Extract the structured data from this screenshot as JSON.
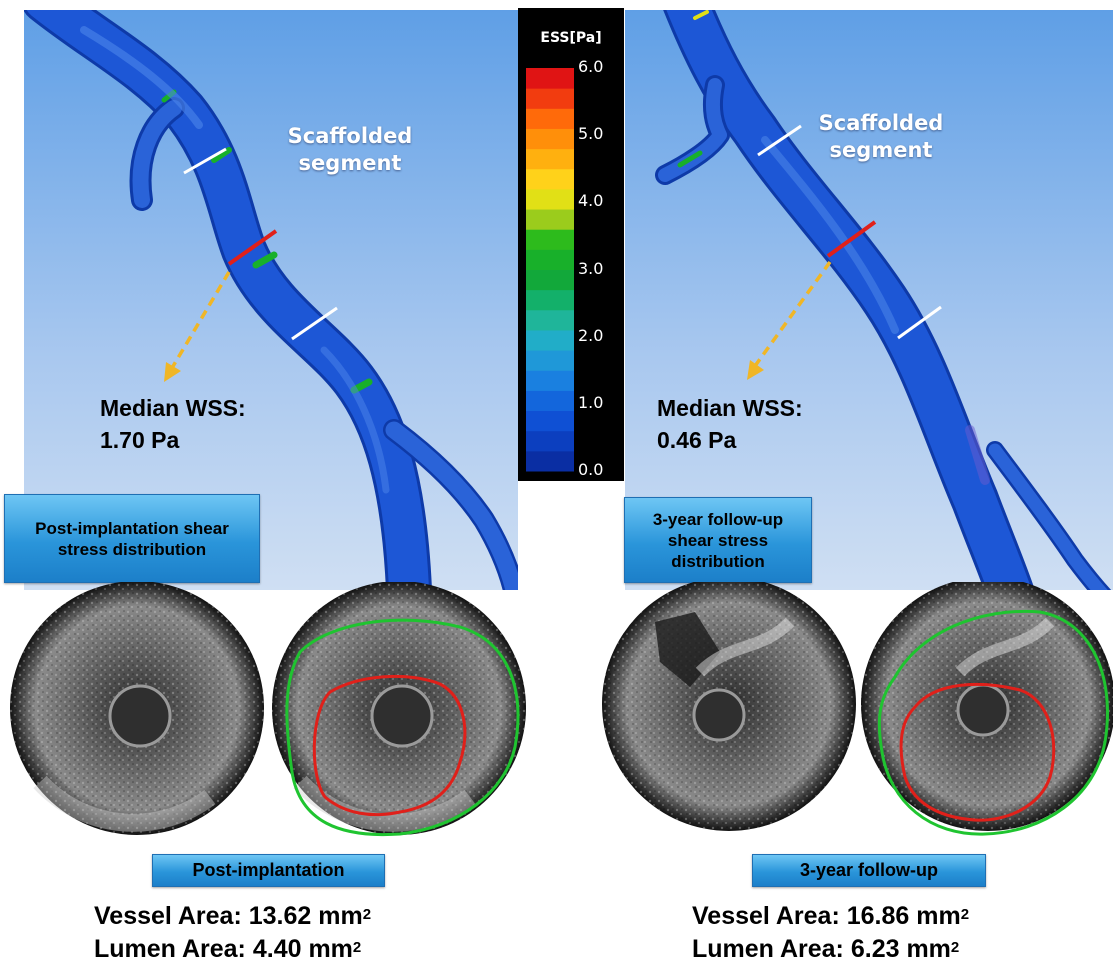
{
  "left": {
    "segment_label_1": "Scaffolded",
    "segment_label_2": "segment",
    "median_label": "Median WSS:",
    "median_value": "1.70 Pa",
    "distribution_label": "Post-implantation shear stress distribution",
    "ivus_label": "Post-implantation",
    "vessel_label": "Vessel Area:",
    "vessel_value": "13.62 mm",
    "lumen_label": "Lumen Area:",
    "lumen_value": "4.40 mm",
    "area_unit_exponent": "2"
  },
  "right": {
    "segment_label_1": "Scaffolded",
    "segment_label_2": "segment",
    "median_label": "Median WSS:",
    "median_value": "0.46 Pa",
    "distribution_label": "3-year follow-up shear stress distribution",
    "ivus_label": "3-year follow-up",
    "vessel_label": "Vessel Area:",
    "vessel_value": "16.86 mm",
    "lumen_label": "Lumen Area:",
    "lumen_value": "6.23 mm",
    "area_unit_exponent": "2"
  },
  "colorbar": {
    "title": "ESS[Pa]",
    "ticks": [
      "6.0",
      "5.0",
      "4.0",
      "3.0",
      "2.0",
      "1.0",
      "0.0"
    ],
    "min": 0,
    "max": 6,
    "colors": [
      "#0a2ea3",
      "#0c3fbf",
      "#0f50d4",
      "#1366dc",
      "#1a80e0",
      "#1f98d8",
      "#21adc8",
      "#1fb59a",
      "#13b06a",
      "#12a83a",
      "#18b02a",
      "#2dbb1c",
      "#9bcc1c",
      "#e1e016",
      "#ffd21a",
      "#ffb00f",
      "#ff8f0a",
      "#ff6a0a",
      "#f23c0f",
      "#e01414"
    ]
  },
  "colors": {
    "background_top": "#5f9fe6",
    "background_bottom": "#c9daf1",
    "vessel": "#1d57d6",
    "boundary_outer": "#1fc430",
    "boundary_inner": "#e0201a",
    "marker_white": "#ffffff",
    "marker_red": "#e0201a",
    "arrow": "#f0b626"
  }
}
